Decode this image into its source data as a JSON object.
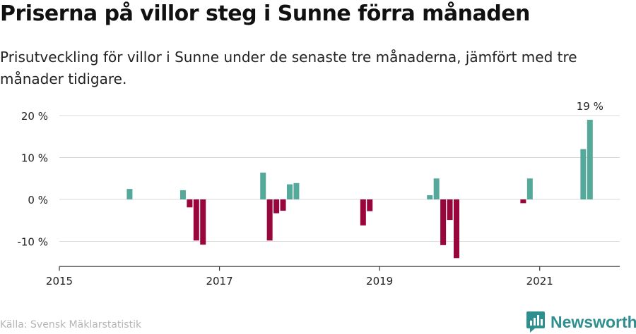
{
  "title": "Priserna på villor steg i Sunne förra månaden",
  "subtitle": "Prisutveckling för villor i Sunne under de senaste tre månaderna, jämfört med tre månader tidigare.",
  "source": "Källa: Svensk Mäklarstatistik",
  "brand": "Newsworthy",
  "colors": {
    "positive": "#55a99b",
    "negative": "#99063c",
    "grid": "#d8d8d8",
    "axis": "#333333",
    "text": "#222222",
    "brand": "#2f8f8f"
  },
  "chart_data": {
    "type": "bar",
    "ylim": [
      -16,
      21
    ],
    "yticks": [
      20,
      10,
      0,
      -10
    ],
    "ytick_labels": [
      "20 %",
      "10 %",
      "0 %",
      "-10 %"
    ],
    "xlim": [
      "2015-01",
      "2021-12"
    ],
    "xticks": [
      "2015-01",
      "2017-01",
      "2019-01",
      "2021-01"
    ],
    "xtick_labels": [
      "2015",
      "2017",
      "2019",
      "2021"
    ],
    "grid": true,
    "annotations": [
      {
        "x": "2021-08",
        "y": 19,
        "text": "19 %"
      }
    ],
    "series": [
      {
        "x": [
          "2015-11",
          "2016-07",
          "2016-08",
          "2016-09",
          "2016-10",
          "2017-07",
          "2017-08",
          "2017-09",
          "2017-10",
          "2017-11",
          "2017-12",
          "2018-10",
          "2018-11",
          "2019-08",
          "2019-09",
          "2019-10",
          "2019-11",
          "2019-12",
          "2020-10",
          "2020-11",
          "2021-07",
          "2021-08"
        ],
        "values": [
          2.5,
          2.2,
          -1.9,
          -9.8,
          -10.8,
          6.4,
          -9.8,
          -3.3,
          -2.7,
          3.6,
          3.9,
          -6.2,
          -2.8,
          1.0,
          5.0,
          -10.9,
          -4.9,
          -14.0,
          -0.9,
          5.0,
          12.0,
          19.0
        ]
      }
    ]
  }
}
